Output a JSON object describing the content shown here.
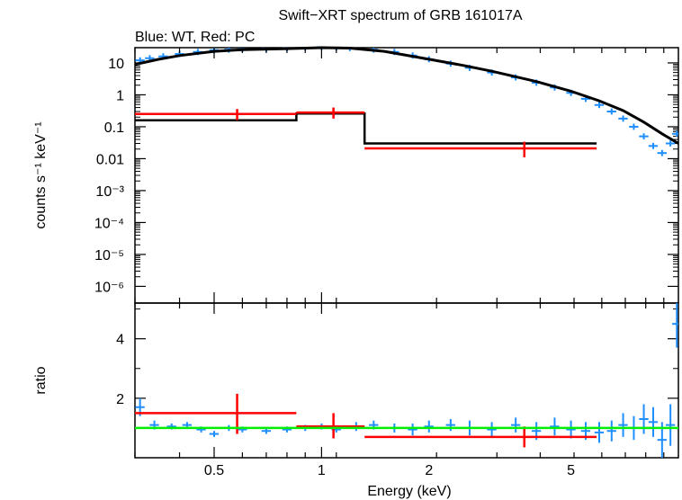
{
  "chart_data": [
    {
      "type": "line",
      "title": "Swift−XRT spectrum of GRB 161017A",
      "subtitle": "Blue: WT, Red: PC",
      "xlabel": "Energy (keV)",
      "ylabel": "counts s⁻¹ keV⁻¹",
      "xscale": "log",
      "yscale": "log",
      "xlim": [
        0.3,
        10
      ],
      "ylim": [
        3e-07,
        30
      ],
      "y_ticks": [
        {
          "v": 10,
          "t": "10"
        },
        {
          "v": 1,
          "t": "1"
        },
        {
          "v": 0.1,
          "t": "0.1"
        },
        {
          "v": 0.01,
          "t": "0.01"
        },
        {
          "v": 0.001,
          "t": "10⁻³"
        },
        {
          "v": 0.0001,
          "t": "10⁻⁴"
        },
        {
          "v": 1e-05,
          "t": "10⁻⁵"
        },
        {
          "v": 1e-06,
          "t": "10⁻⁶"
        }
      ],
      "colors": {
        "wt": "#1f8fff",
        "pc": "#ff0000",
        "model": "#000000"
      },
      "series": [
        {
          "name": "WT",
          "x": [
            0.31,
            0.33,
            0.36,
            0.4,
            0.45,
            0.5,
            0.55,
            0.6,
            0.7,
            0.8,
            0.9,
            1.0,
            1.1,
            1.2,
            1.4,
            1.6,
            1.8,
            2.0,
            2.3,
            2.6,
            3.0,
            3.5,
            4.0,
            4.5,
            5.0,
            5.5,
            6.0,
            6.5,
            7.0,
            7.5,
            8.0,
            8.5,
            9.0,
            9.5,
            9.9
          ],
          "y": [
            12,
            14,
            16,
            19,
            22,
            25,
            26,
            27,
            28,
            29,
            30,
            31,
            30,
            29,
            26,
            22,
            17,
            13,
            9.5,
            7.0,
            5.0,
            3.5,
            2.4,
            1.7,
            1.15,
            0.75,
            0.48,
            0.3,
            0.18,
            0.1,
            0.05,
            0.025,
            0.015,
            0.03,
            0.06
          ]
        },
        {
          "name": "PC",
          "x": [
            0.58,
            1.08,
            3.7
          ],
          "xlo": [
            0.3,
            0.85,
            1.32
          ],
          "xhi": [
            0.85,
            1.32,
            5.9
          ],
          "y": [
            0.25,
            0.28,
            0.021
          ],
          "ylo": [
            0.16,
            0.18,
            0.011
          ],
          "yhi": [
            0.36,
            0.4,
            0.034
          ]
        },
        {
          "name": "Model WT",
          "x": [
            0.3,
            0.35,
            0.4,
            0.5,
            0.6,
            0.8,
            1.0,
            1.2,
            1.5,
            2.0,
            2.5,
            3.0,
            4.0,
            5.0,
            6.0,
            7.0,
            8.0,
            9.0,
            10.0
          ],
          "y": [
            9.0,
            13,
            17,
            23,
            26,
            28,
            30,
            29,
            23,
            13,
            8.3,
            5.5,
            2.6,
            1.3,
            0.65,
            0.32,
            0.14,
            0.06,
            0.03
          ]
        },
        {
          "name": "Model PC",
          "step_x": [
            0.3,
            0.85,
            1.32,
            5.9
          ],
          "step_y": [
            0.16,
            0.26,
            0.03
          ]
        }
      ]
    },
    {
      "type": "scatter",
      "xlabel": "Energy (keV)",
      "ylabel": "ratio",
      "xscale": "log",
      "xlim": [
        0.3,
        10
      ],
      "ylim": [
        0,
        5.2
      ],
      "y_ticks": [
        {
          "v": 2,
          "t": "2"
        },
        {
          "v": 4,
          "t": "4"
        }
      ],
      "x_ticks": [
        {
          "v": 0.5,
          "t": "0.5"
        },
        {
          "v": 1,
          "t": "1"
        },
        {
          "v": 2,
          "t": "2"
        },
        {
          "v": 5,
          "t": "5"
        }
      ],
      "reference_line": 1,
      "colors": {
        "wt": "#1f8fff",
        "pc": "#ff0000",
        "ref": "#00ee00"
      },
      "series": [
        {
          "name": "WT",
          "x": [
            0.31,
            0.34,
            0.38,
            0.42,
            0.46,
            0.5,
            0.55,
            0.6,
            0.7,
            0.8,
            0.9,
            1.0,
            1.1,
            1.25,
            1.4,
            1.6,
            1.8,
            2.0,
            2.3,
            2.6,
            3.0,
            3.5,
            4.0,
            4.5,
            5.0,
            5.5,
            6.0,
            6.5,
            7.0,
            7.5,
            8.0,
            8.5,
            9.0,
            9.5,
            9.9
          ],
          "y": [
            1.7,
            1.1,
            1.05,
            1.1,
            0.95,
            0.8,
            1.0,
            0.95,
            0.9,
            0.95,
            1.0,
            1.05,
            0.95,
            1.05,
            1.1,
            1.0,
            0.95,
            1.05,
            1.1,
            1.0,
            0.95,
            1.1,
            0.9,
            1.05,
            0.95,
            0.9,
            0.85,
            0.9,
            1.1,
            1.0,
            1.3,
            1.2,
            0.6,
            1.1,
            4.5
          ],
          "err": [
            0.3,
            0.15,
            0.1,
            0.1,
            0.1,
            0.1,
            0.1,
            0.1,
            0.1,
            0.1,
            0.1,
            0.1,
            0.1,
            0.15,
            0.15,
            0.15,
            0.2,
            0.2,
            0.2,
            0.25,
            0.25,
            0.25,
            0.3,
            0.3,
            0.3,
            0.3,
            0.35,
            0.35,
            0.4,
            0.4,
            0.5,
            0.5,
            0.6,
            0.7,
            0.8
          ]
        },
        {
          "name": "PC",
          "x": [
            0.58,
            1.08,
            3.7
          ],
          "xlo": [
            0.3,
            0.85,
            1.32
          ],
          "xhi": [
            0.85,
            1.32,
            5.9
          ],
          "y": [
            1.5,
            1.05,
            0.7
          ],
          "ylo": [
            0.8,
            0.65,
            0.35
          ],
          "yhi": [
            2.15,
            1.5,
            1.05
          ]
        }
      ]
    }
  ]
}
